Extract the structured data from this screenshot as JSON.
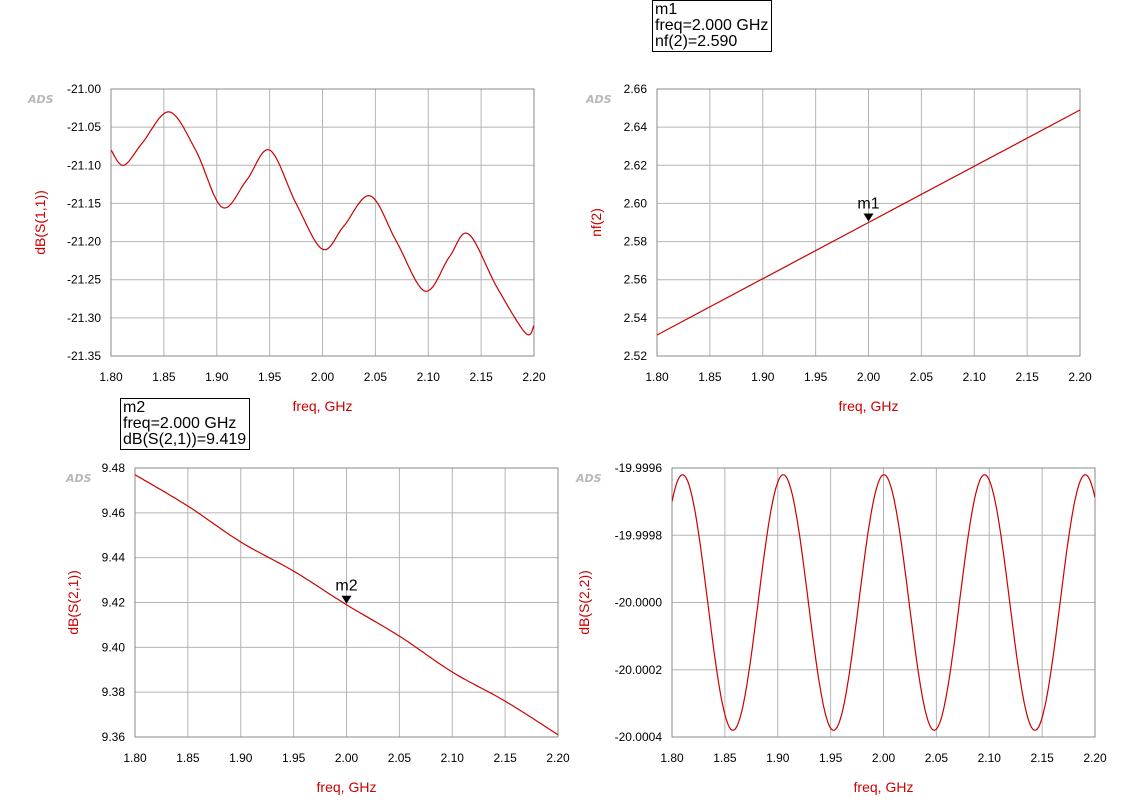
{
  "app": {
    "logo": "ADS"
  },
  "marker_readouts": [
    {
      "name": "m1",
      "line1": "freq=2.000 GHz",
      "line2": "nf(2)=2.590"
    },
    {
      "name": "m2",
      "line1": "freq=2.000 GHz",
      "line2": "dB(S(2,1))=9.419"
    }
  ],
  "chart_data": [
    {
      "type": "line",
      "id": "s11",
      "xlabel": "freq, GHz",
      "ylabel": "dB(S(1,1))",
      "xlim": [
        1.8,
        2.2
      ],
      "ylim": [
        -21.35,
        -21.0
      ],
      "xticks": [
        "1.80",
        "1.85",
        "1.90",
        "1.95",
        "2.00",
        "2.05",
        "2.10",
        "2.15",
        "2.20"
      ],
      "yticks": [
        "-21.00",
        "-21.05",
        "-21.10",
        "-21.15",
        "-21.20",
        "-21.25",
        "-21.30",
        "-21.35"
      ],
      "grid": true,
      "color": "#cc0000",
      "x": [
        1.8,
        1.812,
        1.83,
        1.855,
        1.88,
        1.905,
        1.928,
        1.95,
        1.975,
        2.0,
        2.02,
        2.045,
        2.07,
        2.097,
        2.12,
        2.138,
        2.165,
        2.192,
        2.2
      ],
      "y": [
        -21.08,
        -21.1,
        -21.07,
        -21.03,
        -21.08,
        -21.155,
        -21.12,
        -21.08,
        -21.15,
        -21.21,
        -21.18,
        -21.14,
        -21.2,
        -21.265,
        -21.22,
        -21.19,
        -21.26,
        -21.32,
        -21.31
      ],
      "series": [
        {
          "x_ref": "x",
          "y_ref": "y"
        }
      ]
    },
    {
      "type": "line",
      "id": "nf2",
      "xlabel": "freq, GHz",
      "ylabel": "nf(2)",
      "xlim": [
        1.8,
        2.2
      ],
      "ylim": [
        2.52,
        2.66
      ],
      "xticks": [
        "1.80",
        "1.85",
        "1.90",
        "1.95",
        "2.00",
        "2.05",
        "2.10",
        "2.15",
        "2.20"
      ],
      "yticks": [
        "2.66",
        "2.64",
        "2.62",
        "2.60",
        "2.58",
        "2.56",
        "2.54",
        "2.52"
      ],
      "grid": true,
      "color": "#cc0000",
      "x": [
        1.8,
        2.0,
        2.2
      ],
      "y": [
        2.531,
        2.59,
        2.649
      ],
      "marker": {
        "label": "m1",
        "x": 2.0,
        "y": 2.59
      }
    },
    {
      "type": "line",
      "id": "s21",
      "xlabel": "freq, GHz",
      "ylabel": "dB(S(2,1))",
      "xlim": [
        1.8,
        2.2
      ],
      "ylim": [
        9.36,
        9.48
      ],
      "xticks": [
        "1.80",
        "1.85",
        "1.90",
        "1.95",
        "2.00",
        "2.05",
        "2.10",
        "2.15",
        "2.20"
      ],
      "yticks": [
        "9.48",
        "9.46",
        "9.44",
        "9.42",
        "9.40",
        "9.38",
        "9.36"
      ],
      "grid": true,
      "color": "#cc0000",
      "x": [
        1.8,
        1.85,
        1.9,
        1.95,
        2.0,
        2.05,
        2.1,
        2.15,
        2.2
      ],
      "y": [
        9.477,
        9.463,
        9.447,
        9.434,
        9.419,
        9.405,
        9.389,
        9.376,
        9.361
      ],
      "marker": {
        "label": "m2",
        "x": 2.0,
        "y": 9.419
      }
    },
    {
      "type": "line",
      "id": "s22",
      "xlabel": "freq, GHz",
      "ylabel": "dB(S(2,2))",
      "xlim": [
        1.8,
        2.2
      ],
      "ylim": [
        -20.0004,
        -19.9996
      ],
      "xticks": [
        "1.80",
        "1.85",
        "1.90",
        "1.95",
        "2.00",
        "2.05",
        "2.10",
        "2.15",
        "2.20"
      ],
      "yticks": [
        "-19.9996",
        "-19.9998",
        "-20.0000",
        "-20.0002",
        "-20.0004"
      ],
      "grid": true,
      "color": "#cc0000",
      "sinusoid": {
        "mean": -20.0,
        "amplitude": 0.00038,
        "period_ghz": 0.0952,
        "peak_at_ghz": 1.81
      }
    }
  ]
}
